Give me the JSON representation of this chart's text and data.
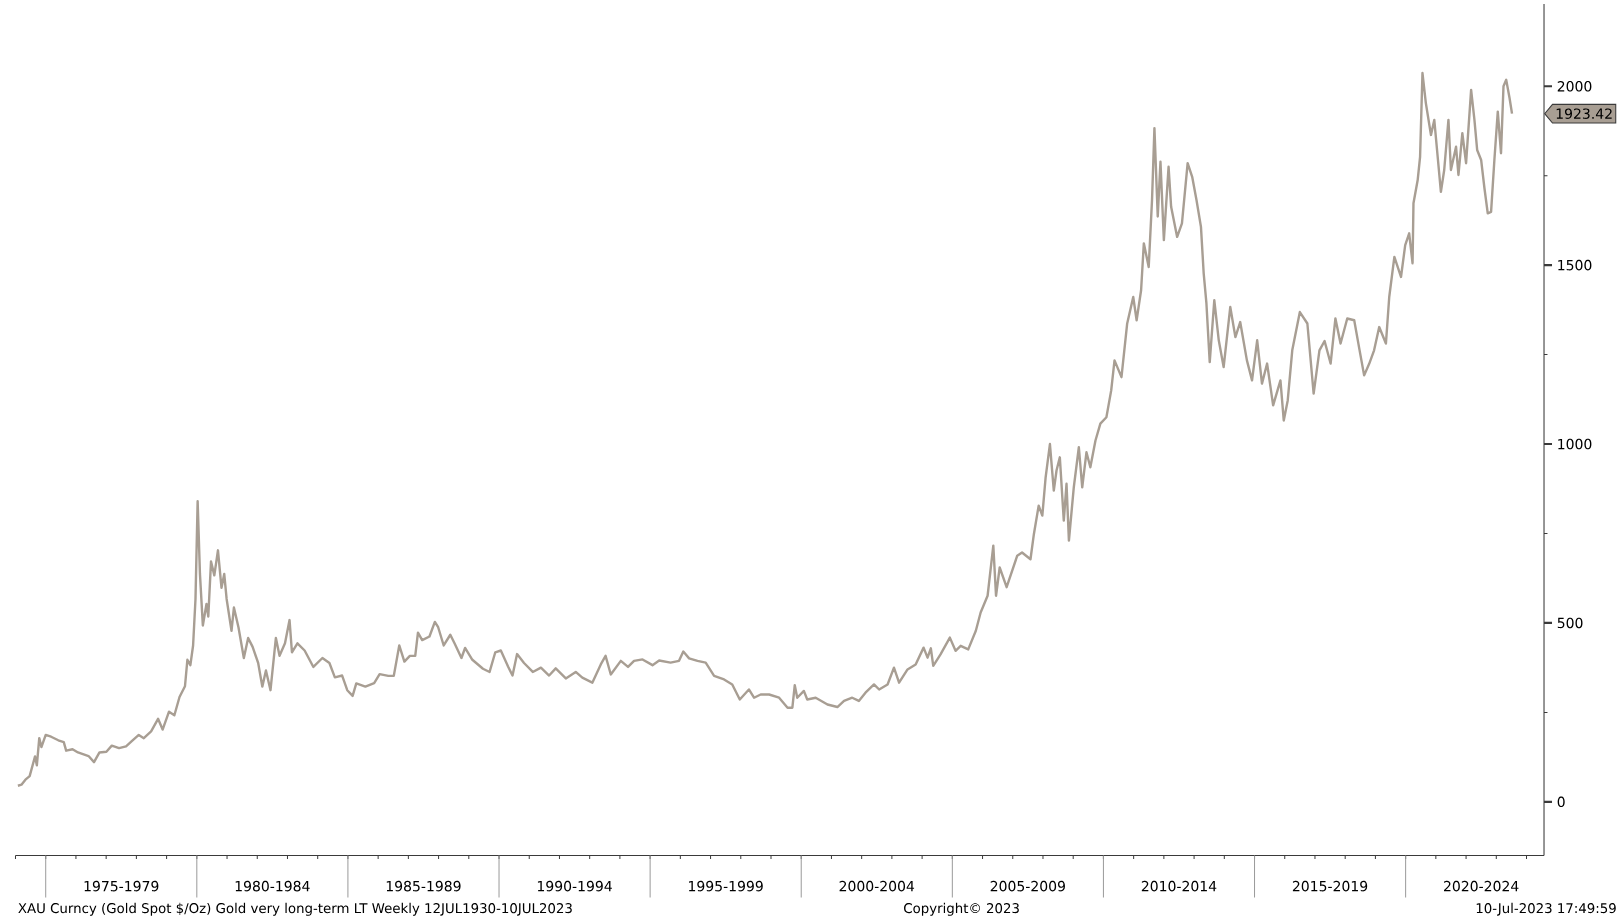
{
  "chart_data": {
    "type": "line",
    "x": [
      "1974-01-30",
      "1974-03-14",
      "1974-05-01",
      "1974-06-21",
      "1974-08-25",
      "1974-09-16",
      "1974-10-15",
      "1974-11-10",
      "1975-01-01",
      "1975-03-07",
      "1975-06-02",
      "1975-08-07",
      "1975-09-05",
      "1975-11-21",
      "1976-01-26",
      "1976-06-02",
      "1976-08-07",
      "1976-10-12",
      "1977-01-04",
      "1977-03-10",
      "1977-06-06",
      "1977-08-29",
      "1977-11-03",
      "1978-01-30",
      "1978-04-01",
      "1978-06-28",
      "1978-09-20",
      "1978-11-14",
      "1979-01-30",
      "1979-04-05",
      "1979-06-06",
      "1979-08-11",
      "1979-09-09",
      "1979-10-15",
      "1979-11-17",
      "1979-12-16",
      "1980-01-11",
      "1980-02-08",
      "1980-03-14",
      "1980-04-27",
      "1980-05-19",
      "1980-06-21",
      "1980-07-31",
      "1980-09-13",
      "1980-10-26",
      "1980-11-28",
      "1980-12-27",
      "1981-02-24",
      "1981-03-25",
      "1981-05-19",
      "1981-07-23",
      "1981-09-13",
      "1981-11-06",
      "1982-01-12",
      "1982-03-03",
      "1982-04-16",
      "1982-06-10",
      "1982-08-14",
      "1982-09-27",
      "1982-12-02",
      "1983-01-26",
      "1983-02-24",
      "1983-05-01",
      "1983-07-27",
      "1983-11-10",
      "1984-02-27",
      "1984-05-22",
      "1984-07-27",
      "1984-10-23",
      "1984-12-24",
      "1985-02-27",
      "1985-04-12",
      "1985-07-31",
      "1985-11-14",
      "1986-01-19",
      "1986-05-04",
      "1986-07-09",
      "1986-09-13",
      "1986-11-14",
      "1987-01-19",
      "1987-03-25",
      "1987-04-27",
      "1987-06-17",
      "1987-09-13",
      "1987-11-17",
      "1987-12-27",
      "1988-03-03",
      "1988-05-22",
      "1988-07-12",
      "1988-10-04",
      "1988-11-17",
      "1989-02-13",
      "1989-06-21",
      "1989-09-09",
      "1989-11-17",
      "1990-01-23",
      "1990-04-20",
      "1990-06-13",
      "1990-08-07",
      "1990-10-30",
      "1991-02-13",
      "1991-05-22",
      "1991-08-29",
      "1991-11-17",
      "1992-03-18",
      "1992-07-16",
      "1992-10-04",
      "1993-02-02",
      "1993-05-15",
      "1993-07-12",
      "1993-09-13",
      "1994-01-12",
      "1994-04-09",
      "1994-06-21",
      "1994-10-01",
      "1995-01-30",
      "1995-04-20",
      "1995-09-05",
      "1995-12-16",
      "1996-02-06",
      "1996-04-16",
      "1996-07-27",
      "1996-11-03",
      "1997-02-13",
      "1997-06-13",
      "1997-09-20",
      "1997-12-20",
      "1998-04-09",
      "1998-06-10",
      "1998-08-29",
      "1998-12-09",
      "1999-04-09",
      "1999-07-20",
      "1999-09-16",
      "1999-10-15",
      "1999-11-14",
      "2000-02-02",
      "2000-03-14",
      "2000-06-24",
      "2000-11-14",
      "2001-03-14",
      "2001-06-02",
      "2001-09-09",
      "2001-11-28",
      "2002-02-16",
      "2002-05-30",
      "2002-07-31",
      "2002-11-10",
      "2003-01-26",
      "2003-03-29",
      "2003-07-09",
      "2003-10-15",
      "2004-01-19",
      "2004-03-07",
      "2004-04-16",
      "2004-05-15",
      "2004-08-11",
      "2004-12-02",
      "2005-02-09",
      "2005-04-12",
      "2005-07-12",
      "2005-10-12",
      "2005-12-09",
      "2006-03-03",
      "2006-05-11",
      "2006-06-13",
      "2006-07-27",
      "2006-10-19",
      "2007-02-24",
      "2007-04-23",
      "2007-08-03",
      "2007-09-13",
      "2007-11-10",
      "2007-12-24",
      "2008-02-02",
      "2008-03-25",
      "2008-05-11",
      "2008-06-13",
      "2008-07-23",
      "2008-09-09",
      "2008-10-12",
      "2008-11-10",
      "2009-01-08",
      "2009-03-10",
      "2009-04-20",
      "2009-06-10",
      "2009-07-27",
      "2009-09-27",
      "2009-11-25",
      "2010-02-06",
      "2010-04-05",
      "2010-05-15",
      "2010-08-07",
      "2010-10-15",
      "2010-12-27",
      "2011-02-06",
      "2011-04-01",
      "2011-05-04",
      "2011-07-02",
      "2011-08-11",
      "2011-09-09",
      "2011-10-19",
      "2011-11-21",
      "2012-01-01",
      "2012-02-27",
      "2012-03-29",
      "2012-06-10",
      "2012-08-07",
      "2012-10-15",
      "2012-12-09",
      "2013-01-30",
      "2013-03-25",
      "2013-04-27",
      "2013-05-30",
      "2013-07-09",
      "2013-09-02",
      "2013-10-26",
      "2013-12-24",
      "2014-03-14",
      "2014-05-15",
      "2014-07-12",
      "2014-10-01",
      "2014-12-02",
      "2015-02-02",
      "2015-04-01",
      "2015-06-02",
      "2015-08-14",
      "2015-11-10",
      "2015-12-20",
      "2016-02-06",
      "2016-04-01",
      "2016-07-02",
      "2016-10-01",
      "2016-12-16",
      "2017-02-24",
      "2017-04-27",
      "2017-07-09",
      "2017-09-05",
      "2017-11-06",
      "2018-01-26",
      "2018-04-20",
      "2018-06-17",
      "2018-08-18",
      "2018-10-19",
      "2018-12-16",
      "2019-02-16",
      "2019-05-08",
      "2019-06-17",
      "2019-08-18",
      "2019-11-06",
      "2019-12-27",
      "2020-02-13",
      "2020-03-25",
      "2020-04-05",
      "2020-05-26",
      "2020-06-24",
      "2020-07-23",
      "2020-09-02",
      "2020-11-03",
      "2020-12-13",
      "2021-01-23",
      "2021-03-03",
      "2021-04-12",
      "2021-06-02",
      "2021-07-02",
      "2021-09-02",
      "2021-10-01",
      "2021-11-17",
      "2022-01-01",
      "2022-03-03",
      "2022-04-12",
      "2022-05-15",
      "2022-07-02",
      "2022-08-11",
      "2022-09-20",
      "2022-10-30",
      "2022-12-09",
      "2023-01-19",
      "2023-02-27",
      "2023-03-29",
      "2023-05-01",
      "2023-06-10",
      "2023-07-10"
    ],
    "series": [
      {
        "color": "#a89e93",
        "values": [
          45,
          48,
          62,
          72,
          127,
          102,
          178,
          153,
          187,
          182,
          172,
          167,
          143,
          147,
          138,
          128,
          111,
          138,
          140,
          157,
          150,
          155,
          169,
          187,
          178,
          197,
          232,
          202,
          252,
          242,
          293,
          323,
          397,
          382,
          437,
          567,
          840,
          637,
          493,
          553,
          518,
          672,
          633,
          703,
          598,
          637,
          567,
          478,
          543,
          488,
          402,
          458,
          433,
          388,
          322,
          367,
          312,
          458,
          408,
          443,
          508,
          418,
          443,
          423,
          377,
          402,
          388,
          348,
          353,
          312,
          296,
          331,
          322,
          332,
          357,
          352,
          352,
          437,
          392,
          408,
          408,
          473,
          452,
          462,
          503,
          488,
          437,
          467,
          443,
          402,
          430,
          397,
          372,
          363,
          418,
          423,
          378,
          353,
          413,
          388,
          363,
          375,
          353,
          373,
          345,
          363,
          347,
          333,
          384,
          408,
          356,
          394,
          377,
          394,
          398,
          382,
          395,
          389,
          394,
          420,
          401,
          394,
          389,
          352,
          342,
          328,
          286,
          314,
          291,
          300,
          300,
          291,
          263,
          263,
          326,
          291,
          310,
          286,
          291,
          272,
          265,
          282,
          291,
          282,
          305,
          328,
          314,
          328,
          375,
          333,
          370,
          384,
          431,
          403,
          429,
          380,
          412,
          459,
          422,
          436,
          426,
          478,
          529,
          576,
          716,
          576,
          655,
          600,
          688,
          697,
          678,
          748,
          828,
          800,
          907,
          1000,
          870,
          926,
          963,
          786,
          889,
          730,
          879,
          991,
          879,
          977,
          935,
          1010,
          1057,
          1075,
          1150,
          1234,
          1187,
          1337,
          1411,
          1346,
          1430,
          1561,
          1495,
          1682,
          1883,
          1636,
          1789,
          1570,
          1775,
          1663,
          1579,
          1617,
          1785,
          1747,
          1682,
          1607,
          1477,
          1393,
          1229,
          1402,
          1290,
          1215,
          1383,
          1299,
          1341,
          1234,
          1178,
          1290,
          1169,
          1225,
          1108,
          1178,
          1066,
          1122,
          1262,
          1369,
          1337,
          1141,
          1262,
          1288,
          1225,
          1351,
          1281,
          1351,
          1346,
          1271,
          1192,
          1225,
          1262,
          1327,
          1281,
          1411,
          1523,
          1467,
          1556,
          1589,
          1505,
          1673,
          1738,
          1803,
          2037,
          1953,
          1864,
          1906,
          1803,
          1705,
          1766,
          1906,
          1766,
          1831,
          1752,
          1869,
          1785,
          1990,
          1906,
          1822,
          1794,
          1715,
          1645,
          1649,
          1794,
          1929,
          1813,
          2000,
          2018,
          1967,
          1923.42
        ]
      }
    ],
    "xlim": [
      "1974-01-01",
      "2024-07-31"
    ],
    "xticks": [
      {
        "value": "1974",
        "label": null
      },
      {
        "value": "1975",
        "label": null
      },
      {
        "value": "1976",
        "label": null
      },
      {
        "value": "1977",
        "label": null
      },
      {
        "value": "1977-07-02",
        "label": "1975-1979"
      },
      {
        "value": "1978",
        "label": null
      },
      {
        "value": "1979",
        "label": null
      },
      {
        "value": "1980",
        "label": null
      },
      {
        "value": "1981",
        "label": null
      },
      {
        "value": "1982",
        "label": null
      },
      {
        "value": "1982-07-02",
        "label": "1980-1984"
      },
      {
        "value": "1983",
        "label": null
      },
      {
        "value": "1984",
        "label": null
      },
      {
        "value": "1985",
        "label": null
      },
      {
        "value": "1986",
        "label": null
      },
      {
        "value": "1987",
        "label": null
      },
      {
        "value": "1987-07-02",
        "label": "1985-1989"
      },
      {
        "value": "1988",
        "label": null
      },
      {
        "value": "1989",
        "label": null
      },
      {
        "value": "1990",
        "label": null
      },
      {
        "value": "1991",
        "label": null
      },
      {
        "value": "1992",
        "label": null
      },
      {
        "value": "1992-07-02",
        "label": "1990-1994"
      },
      {
        "value": "1993",
        "label": null
      },
      {
        "value": "1994",
        "label": null
      },
      {
        "value": "1995",
        "label": null
      },
      {
        "value": "1996",
        "label": null
      },
      {
        "value": "1997",
        "label": null
      },
      {
        "value": "1997-07-02",
        "label": "1995-1999"
      },
      {
        "value": "1998",
        "label": null
      },
      {
        "value": "1999",
        "label": null
      },
      {
        "value": "2000",
        "label": null
      },
      {
        "value": "2001",
        "label": null
      },
      {
        "value": "2002",
        "label": null
      },
      {
        "value": "2002-07-02",
        "label": "2000-2004"
      },
      {
        "value": "2003",
        "label": null
      },
      {
        "value": "2004",
        "label": null
      },
      {
        "value": "2005",
        "label": null
      },
      {
        "value": "2006",
        "label": null
      },
      {
        "value": "2007",
        "label": null
      },
      {
        "value": "2007-07-02",
        "label": "2005-2009"
      },
      {
        "value": "2008",
        "label": null
      },
      {
        "value": "2009",
        "label": null
      },
      {
        "value": "2010",
        "label": null
      },
      {
        "value": "2011",
        "label": null
      },
      {
        "value": "2012",
        "label": null
      },
      {
        "value": "2012-07-02",
        "label": "2010-2014"
      },
      {
        "value": "2013",
        "label": null
      },
      {
        "value": "2014",
        "label": null
      },
      {
        "value": "2015",
        "label": null
      },
      {
        "value": "2016",
        "label": null
      },
      {
        "value": "2017",
        "label": null
      },
      {
        "value": "2017-07-02",
        "label": "2015-2019"
      },
      {
        "value": "2018",
        "label": null
      },
      {
        "value": "2019",
        "label": null
      },
      {
        "value": "2020",
        "label": null
      },
      {
        "value": "2021",
        "label": null
      },
      {
        "value": "2022",
        "label": null
      },
      {
        "value": "2022-07-02",
        "label": "2020-2024"
      },
      {
        "value": "2023",
        "label": null
      },
      {
        "value": "2024",
        "label": null
      }
    ],
    "ylim": [
      -150,
      2230
    ],
    "yticks": [
      0,
      {
        "value": 250,
        "label": null
      },
      500,
      {
        "value": 750,
        "label": null
      },
      1000,
      {
        "value": 1250,
        "label": null
      },
      1500,
      {
        "value": 1750,
        "label": null
      },
      2000
    ],
    "annotations": [
      "1923.42",
      "XAU Curncy (Gold Spot $/Oz) Gold very long-term LT Weekly 12JUL1930-10JUL2023",
      "Copyright© 2023",
      "10-Jul-2023 17:49:59"
    ]
  }
}
